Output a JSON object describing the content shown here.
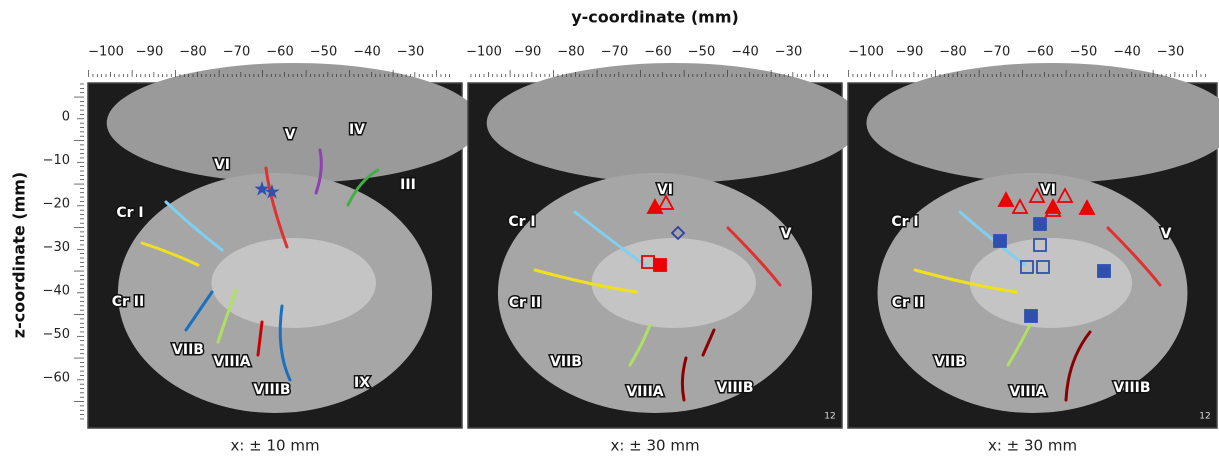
{
  "axes": {
    "x_label": "y-coordinate (mm)",
    "y_label": "z-coordinate (mm)",
    "x_ticks": [
      "−100",
      "−90",
      "−80",
      "−70",
      "−60",
      "−50",
      "−40",
      "−30"
    ],
    "y_ticks": [
      "0",
      "−10",
      "−20",
      "−30",
      "−40",
      "−50",
      "−60"
    ]
  },
  "panels": [
    {
      "caption": "x: ± 10 mm",
      "regions": [
        "VI",
        "V",
        "IV",
        "III",
        "Cr I",
        "Cr II",
        "VIIB",
        "VIIIA",
        "VIIIB",
        "IX"
      ]
    },
    {
      "caption": "x: ± 30 mm",
      "slice_number": "12",
      "regions": [
        "VI",
        "Cr I",
        "V",
        "Cr II",
        "VIIB",
        "VIIIA",
        "VIIIB"
      ]
    },
    {
      "caption": "x: ± 30 mm",
      "slice_number": "12",
      "regions": [
        "VI",
        "Cr I",
        "V",
        "Cr II",
        "VIIB",
        "VIIIA",
        "VIIIB"
      ]
    }
  ]
}
